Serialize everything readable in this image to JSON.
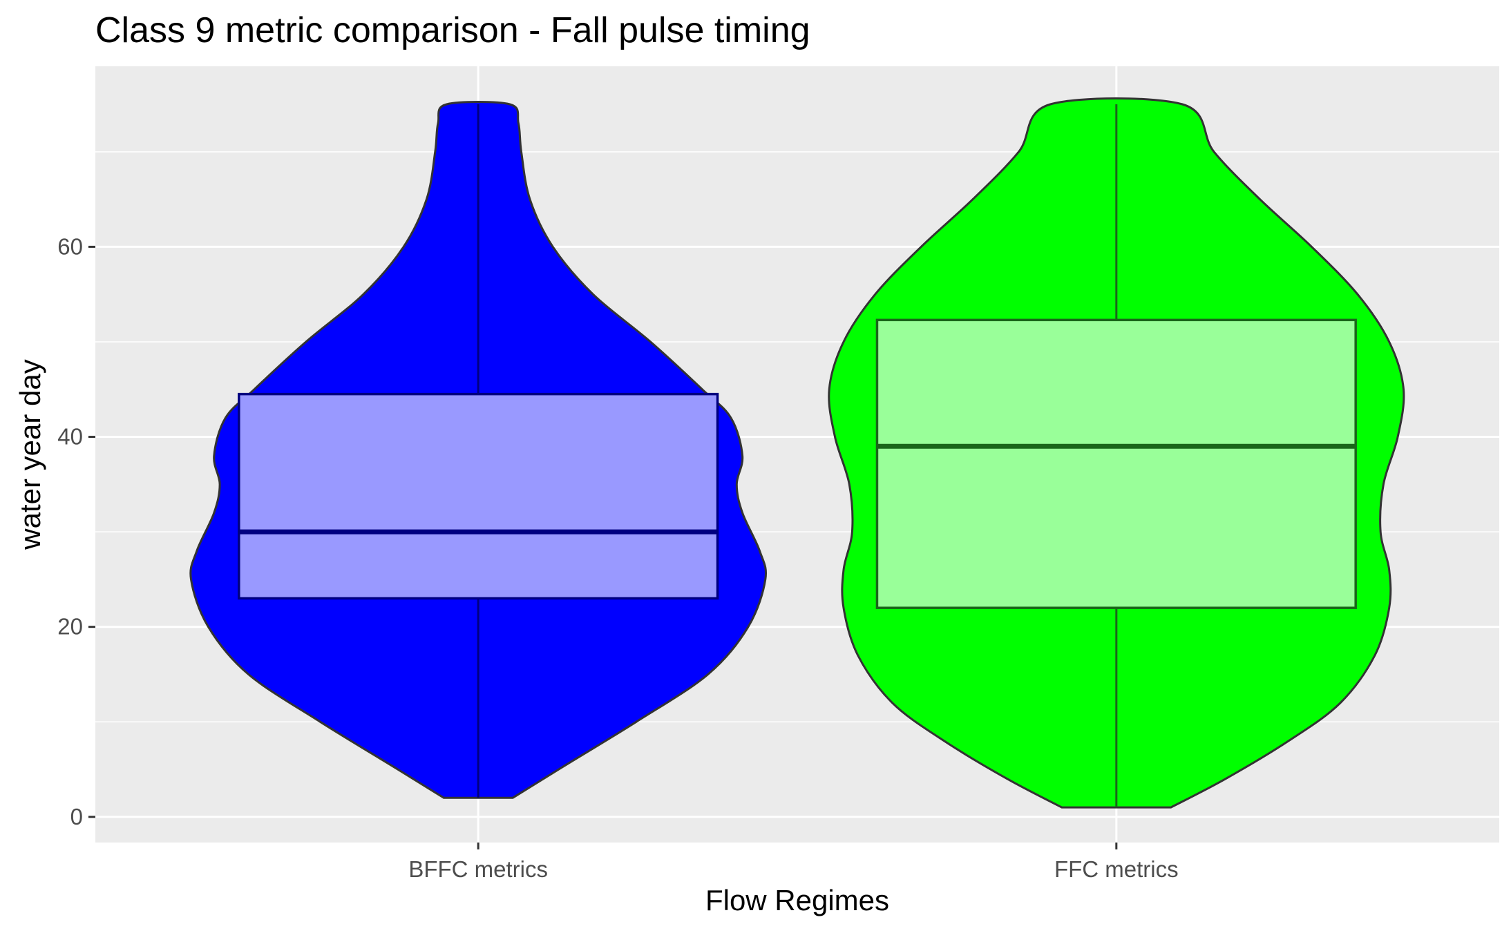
{
  "chart_data": {
    "type": "violin",
    "title": "Class 9 metric comparison - Fall pulse timing",
    "xlabel": "Flow Regimes",
    "ylabel": "water year day",
    "ylim": [
      -2.7,
      79
    ],
    "yticks": [
      0,
      20,
      40,
      60
    ],
    "grid": true,
    "legend": "none",
    "categories": [
      "BFFC metrics",
      "FFC metrics"
    ],
    "series": [
      {
        "category": "BFFC metrics",
        "fill": "#0000ff",
        "box_fill": "#9999ff",
        "box_stroke": "#000080",
        "min": 2,
        "q1": 23,
        "median": 30,
        "q3": 44.5,
        "max": 75,
        "density": [
          [
            2,
            0.12
          ],
          [
            5,
            0.28
          ],
          [
            10,
            0.55
          ],
          [
            15,
            0.8
          ],
          [
            20,
            0.94
          ],
          [
            25,
            1.0
          ],
          [
            28,
            0.98
          ],
          [
            32,
            0.92
          ],
          [
            35,
            0.9
          ],
          [
            38,
            0.92
          ],
          [
            42,
            0.88
          ],
          [
            45,
            0.78
          ],
          [
            50,
            0.6
          ],
          [
            55,
            0.4
          ],
          [
            60,
            0.26
          ],
          [
            65,
            0.18
          ],
          [
            70,
            0.15
          ],
          [
            73,
            0.14
          ],
          [
            75,
            0.11
          ]
        ]
      },
      {
        "category": "FFC metrics",
        "fill": "#00ff00",
        "box_fill": "#99ff99",
        "box_stroke": "#1a661a",
        "min": 1,
        "q1": 22,
        "median": 39,
        "q3": 52.3,
        "max": 75,
        "density": [
          [
            1,
            0.19
          ],
          [
            4,
            0.38
          ],
          [
            8,
            0.6
          ],
          [
            12,
            0.78
          ],
          [
            17,
            0.9
          ],
          [
            22,
            0.95
          ],
          [
            26,
            0.95
          ],
          [
            30,
            0.92
          ],
          [
            35,
            0.93
          ],
          [
            40,
            0.98
          ],
          [
            45,
            1.0
          ],
          [
            50,
            0.95
          ],
          [
            55,
            0.84
          ],
          [
            60,
            0.68
          ],
          [
            65,
            0.5
          ],
          [
            70,
            0.34
          ],
          [
            75,
            0.23
          ]
        ]
      }
    ]
  }
}
